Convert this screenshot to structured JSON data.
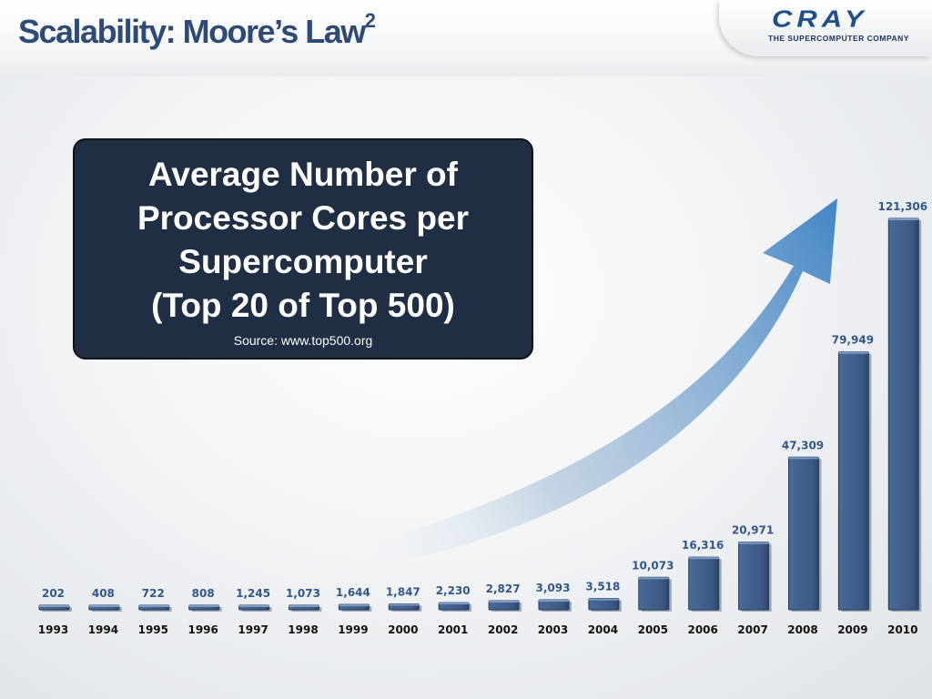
{
  "slide": {
    "title": "Scalability: Moore’s Law",
    "title_superscript": "2",
    "logo": {
      "wordmark": "CRAY",
      "tagline": "THE SUPERCOMPUTER COMPANY"
    }
  },
  "chart_data": {
    "type": "bar",
    "title_lines": [
      "Average Number of",
      "Processor Cores per",
      "Supercomputer",
      "(Top 20 of Top 500)"
    ],
    "subtitle": "Source: www.top500.org",
    "categories": [
      "1993",
      "1994",
      "1995",
      "1996",
      "1997",
      "1998",
      "1999",
      "2000",
      "2001",
      "2002",
      "2003",
      "2004",
      "2005",
      "2006",
      "2007",
      "2008",
      "2009",
      "2010"
    ],
    "values": [
      202,
      408,
      722,
      808,
      1245,
      1073,
      1644,
      1847,
      2230,
      2827,
      3093,
      3518,
      10073,
      16316,
      20971,
      47309,
      79949,
      121306
    ],
    "value_labels": [
      "202",
      "408",
      "722",
      "808",
      "1,245",
      "1,073",
      "1,644",
      "1,847",
      "2,230",
      "2,827",
      "3,093",
      "3,518",
      "10,073",
      "16,316",
      "20,971",
      "47,309",
      "79,949",
      "121,306"
    ],
    "ylim": [
      0,
      121306
    ],
    "grid": false,
    "legend": "none",
    "colors": {
      "bar": "#3d5b86",
      "bar_dark": "#263c5e",
      "value_label": "#34578a",
      "arrow": "#3d7fc1"
    }
  }
}
